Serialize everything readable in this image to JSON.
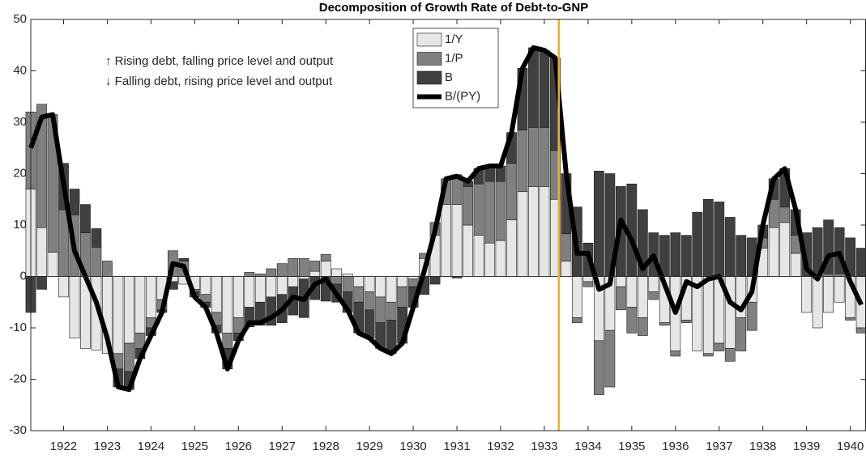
{
  "chart_data": {
    "type": "bar",
    "stacked": true,
    "title": "Decomposition of Growth Rate of Debt-to-GNP",
    "annotations": [
      "↑ Rising debt, falling price level and output",
      "↓ Falling debt, rising price level and output"
    ],
    "x": [
      1921.25,
      1921.5,
      1921.75,
      1922,
      1922.25,
      1922.5,
      1922.75,
      1923,
      1923.25,
      1923.5,
      1923.75,
      1924,
      1924.25,
      1924.5,
      1924.75,
      1925,
      1925.25,
      1925.5,
      1925.75,
      1926,
      1926.25,
      1926.5,
      1926.75,
      1927,
      1927.25,
      1927.5,
      1927.75,
      1928,
      1928.25,
      1928.5,
      1928.75,
      1929,
      1929.25,
      1929.5,
      1929.75,
      1930,
      1930.25,
      1930.5,
      1930.75,
      1931,
      1931.25,
      1931.5,
      1931.75,
      1932,
      1932.25,
      1932.5,
      1932.75,
      1933,
      1933.25,
      1933.5,
      1933.75,
      1934,
      1934.25,
      1934.5,
      1934.75,
      1935,
      1935.25,
      1935.5,
      1935.75,
      1936,
      1936.25,
      1936.5,
      1936.75,
      1937,
      1937.25,
      1937.5,
      1937.75,
      1938,
      1938.25,
      1938.5,
      1938.75,
      1939,
      1939.25,
      1939.5,
      1939.75,
      1940,
      1940.25
    ],
    "series": [
      {
        "name": "1/Y",
        "type": "bar",
        "color": "#e6e6e6",
        "values": [
          17,
          9.5,
          4.7,
          -4,
          -12,
          -14,
          -14.3,
          -15,
          -15,
          -13,
          -11,
          -8,
          -4.5,
          -1,
          -1.5,
          -2.5,
          -3.5,
          -7,
          -11,
          -8,
          -6,
          -5,
          -4,
          -3.5,
          -2,
          -0.5,
          1,
          3,
          1.5,
          0.5,
          -2,
          -3,
          -4,
          -5,
          -2,
          -0.5,
          3.5,
          8,
          14,
          14,
          10,
          8,
          6.5,
          7,
          11,
          16.5,
          17.5,
          17.5,
          15,
          3,
          -8,
          -1,
          -12.5,
          -10.5,
          -2,
          -6,
          -8,
          -3,
          -9,
          -14.5,
          -8.5,
          -14.5,
          -15,
          -13,
          -14,
          -8,
          -5,
          5.5,
          9.5,
          10.5,
          4.5,
          -7,
          -10,
          -7,
          -5,
          -8,
          -10
        ]
      },
      {
        "name": "1/P",
        "type": "bar",
        "color": "#808080",
        "values": [
          15,
          24,
          26.8,
          13,
          12,
          8.5,
          5.7,
          3,
          -3,
          -5.5,
          -3,
          -2,
          -2,
          5,
          3,
          -0.5,
          -1.5,
          -2.5,
          -3,
          -3,
          0.8,
          0.5,
          1.5,
          2.5,
          3.5,
          3.5,
          2,
          1.3,
          -1.5,
          -3,
          -3,
          -3.5,
          -5,
          -3.5,
          -4,
          -1.5,
          1,
          2.5,
          5,
          5.8,
          7.5,
          10,
          12,
          11.5,
          11,
          12,
          11.5,
          11.5,
          9.5,
          5.3,
          -1,
          -1,
          -10.5,
          -11,
          -4.5,
          -5,
          -3.5,
          -1.5,
          -0.5,
          -1,
          -0.5,
          0,
          -0.5,
          -1.5,
          -2.5,
          -6.5,
          -5.5,
          2,
          5.5,
          3,
          3.5,
          0,
          0,
          0.5,
          0.5,
          -0.5,
          -1
        ]
      },
      {
        "name": "B",
        "type": "bar",
        "color": "#404040",
        "values": [
          -7,
          -2.5,
          0,
          9,
          5,
          5.5,
          3.6,
          0,
          -3.5,
          -3.5,
          -2,
          -1.5,
          -0.5,
          -1.5,
          0.5,
          -1,
          -1,
          -1.5,
          -4,
          -1.5,
          -3.8,
          -4.5,
          -5.5,
          -5.5,
          -5.5,
          -7.5,
          -4.5,
          -4.8,
          -3.5,
          -4,
          -6,
          -5.5,
          -5,
          -6.5,
          -7,
          -4,
          -3.5,
          -1.5,
          0,
          -0.3,
          1,
          3,
          3,
          3,
          6,
          12,
          15.5,
          15,
          18,
          11.7,
          13.5,
          6.5,
          20.5,
          20,
          17.5,
          18,
          13,
          8.5,
          8,
          8.5,
          8,
          12.5,
          15,
          14.5,
          11.5,
          8,
          7.5,
          2.5,
          4,
          7.5,
          5,
          8.5,
          9.5,
          10.5,
          9,
          7.5,
          5.5
        ]
      },
      {
        "name": "B/(PY)",
        "type": "line",
        "color": "#000000",
        "values": [
          25,
          31,
          31.5,
          18,
          5,
          0,
          -5,
          -12,
          -21.5,
          -22,
          -16,
          -11.5,
          -7,
          2.5,
          2,
          -4,
          -6,
          -11,
          -18,
          -12.5,
          -9,
          -9,
          -8,
          -6.5,
          -4,
          -4.5,
          -1.5,
          -0.5,
          -3.5,
          -6.5,
          -11,
          -12,
          -14,
          -15,
          -13,
          -6,
          1,
          9,
          19,
          19.5,
          18.5,
          21,
          21.5,
          21.5,
          28,
          40.5,
          44.5,
          44,
          42.5,
          20,
          4.5,
          4.5,
          -2.5,
          -1.5,
          11,
          7,
          1.5,
          4,
          -1.5,
          -7,
          -1,
          -2,
          -0.5,
          0,
          -5,
          -6.5,
          -3,
          10,
          19,
          21,
          13,
          1.5,
          -0.5,
          4,
          4.5,
          -1,
          -5.5
        ]
      }
    ],
    "vline": {
      "x": 1933.33,
      "color": "#edb120"
    },
    "xlim": [
      1921.25,
      1940.35
    ],
    "xticks": [
      1922,
      1923,
      1924,
      1925,
      1926,
      1927,
      1928,
      1929,
      1930,
      1931,
      1932,
      1933,
      1934,
      1935,
      1936,
      1937,
      1938,
      1939,
      1940
    ],
    "ylim": [
      -30,
      50
    ],
    "yticks": [
      -30,
      -20,
      -10,
      0,
      10,
      20,
      30,
      40,
      50
    ],
    "legend": "top"
  }
}
